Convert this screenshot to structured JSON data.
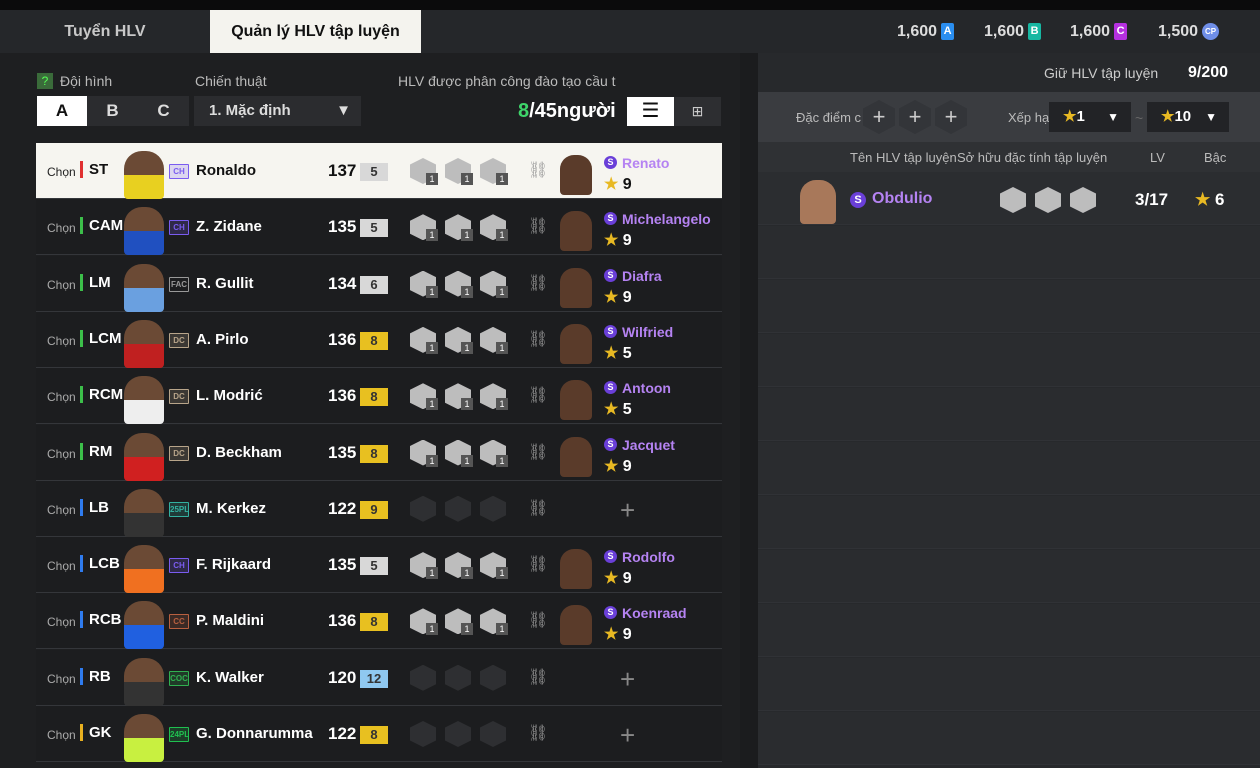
{
  "tabs": [
    {
      "label": "Tuyển HLV"
    },
    {
      "label": "Quản lý HLV tập luyện"
    }
  ],
  "currencies": [
    {
      "value": "1,600",
      "icon": "A",
      "color": "#2a8ef0"
    },
    {
      "value": "1,600",
      "icon": "B",
      "color": "#17b7a2"
    },
    {
      "value": "1,600",
      "icon": "C",
      "color": "#b530e0"
    },
    {
      "value": "1,500",
      "icon": "CP",
      "color": "#6f8ee8"
    }
  ],
  "left": {
    "formation_label": "Đội hình",
    "help": "?",
    "tactic_label": "Chiến thuật",
    "squads": [
      "A",
      "B",
      "C"
    ],
    "tactic_value": "1. Mặc định",
    "assigned_label": "HLV được phân công đào tạo cầu t",
    "assigned_count": "8",
    "assigned_total": "/45người"
  },
  "players": [
    {
      "chon": "Chọn",
      "pos": "ST",
      "posColor": "#e03030",
      "season": "CH",
      "seasonColor": "#7a5cf0",
      "name": "Ronaldo",
      "ovr": "137",
      "lvl": "5",
      "lvlColor": "#d8d8d8",
      "skills": 3,
      "coach": "Renato",
      "stars": "9",
      "selected": true
    },
    {
      "chon": "Chọn",
      "pos": "CAM",
      "posColor": "#3cbf4a",
      "season": "CH",
      "seasonColor": "#7a5cf0",
      "name": "Z. Zidane",
      "ovr": "135",
      "lvl": "5",
      "lvlColor": "#d8d8d8",
      "skills": 3,
      "coach": "Michelangelo",
      "stars": "9"
    },
    {
      "chon": "Chọn",
      "pos": "LM",
      "posColor": "#3cbf4a",
      "season": "FAC",
      "seasonColor": "#999",
      "name": "R. Gullit",
      "ovr": "134",
      "lvl": "6",
      "lvlColor": "#d8d8d8",
      "skills": 3,
      "coach": "Diafra",
      "stars": "9"
    },
    {
      "chon": "Chọn",
      "pos": "LCM",
      "posColor": "#3cbf4a",
      "season": "DC",
      "seasonColor": "#b8a58a",
      "name": "A. Pirlo",
      "ovr": "136",
      "lvl": "8",
      "lvlColor": "#e8c020",
      "skills": 3,
      "coach": "Wilfried",
      "stars": "5"
    },
    {
      "chon": "Chọn",
      "pos": "RCM",
      "posColor": "#3cbf4a",
      "season": "DC",
      "seasonColor": "#b8a58a",
      "name": "L. Modrić",
      "ovr": "136",
      "lvl": "8",
      "lvlColor": "#e8c020",
      "skills": 3,
      "coach": "Antoon",
      "stars": "5"
    },
    {
      "chon": "Chọn",
      "pos": "RM",
      "posColor": "#3cbf4a",
      "season": "DC",
      "seasonColor": "#b8a58a",
      "name": "D. Beckham",
      "ovr": "135",
      "lvl": "8",
      "lvlColor": "#e8c020",
      "skills": 3,
      "coach": "Jacquet",
      "stars": "9"
    },
    {
      "chon": "Chọn",
      "pos": "LB",
      "posColor": "#2f7cf0",
      "season": "25PL",
      "seasonColor": "#33b0a0",
      "name": "M. Kerkez",
      "ovr": "122",
      "lvl": "9",
      "lvlColor": "#e8c020",
      "skills": 0,
      "coach": "",
      "stars": ""
    },
    {
      "chon": "Chọn",
      "pos": "LCB",
      "posColor": "#2f7cf0",
      "season": "CH",
      "seasonColor": "#7a5cf0",
      "name": "F. Rijkaard",
      "ovr": "135",
      "lvl": "5",
      "lvlColor": "#d8d8d8",
      "skills": 3,
      "coach": "Rodolfo",
      "stars": "9"
    },
    {
      "chon": "Chọn",
      "pos": "RCB",
      "posColor": "#2f7cf0",
      "season": "CC",
      "seasonColor": "#b86040",
      "name": "P. Maldini",
      "ovr": "136",
      "lvl": "8",
      "lvlColor": "#e8c020",
      "skills": 3,
      "coach": "Koenraad",
      "stars": "9"
    },
    {
      "chon": "Chọn",
      "pos": "RB",
      "posColor": "#2f7cf0",
      "season": "COC",
      "seasonColor": "#30b050",
      "name": "K. Walker",
      "ovr": "120",
      "lvl": "12",
      "lvlColor": "#8fc8f0",
      "skills": 0,
      "coach": "",
      "stars": ""
    },
    {
      "chon": "Chọn",
      "pos": "GK",
      "posColor": "#e8b020",
      "season": "24PL",
      "seasonColor": "#20c050",
      "name": "G. Donnarumma",
      "ovr": "122",
      "lvl": "8",
      "lvlColor": "#e8c020",
      "skills": 0,
      "coach": "",
      "stars": ""
    }
  ],
  "right": {
    "keep_label": "Giữ HLV tập luyện",
    "keep_value": "9/200",
    "trait_label": "Đặc điểm c",
    "rank_label": "Xếp hạ",
    "rank_from": "1",
    "rank_to": "10",
    "tilde": "~",
    "columns": [
      "Tên HLV tập luyện",
      "Sở hữu đặc tính tập luyện",
      "LV",
      "Bậc"
    ],
    "coaches": [
      {
        "badge": "S",
        "name": "Obdulio",
        "skill_level": "1",
        "lv": "3/17",
        "stars": "6"
      }
    ]
  }
}
